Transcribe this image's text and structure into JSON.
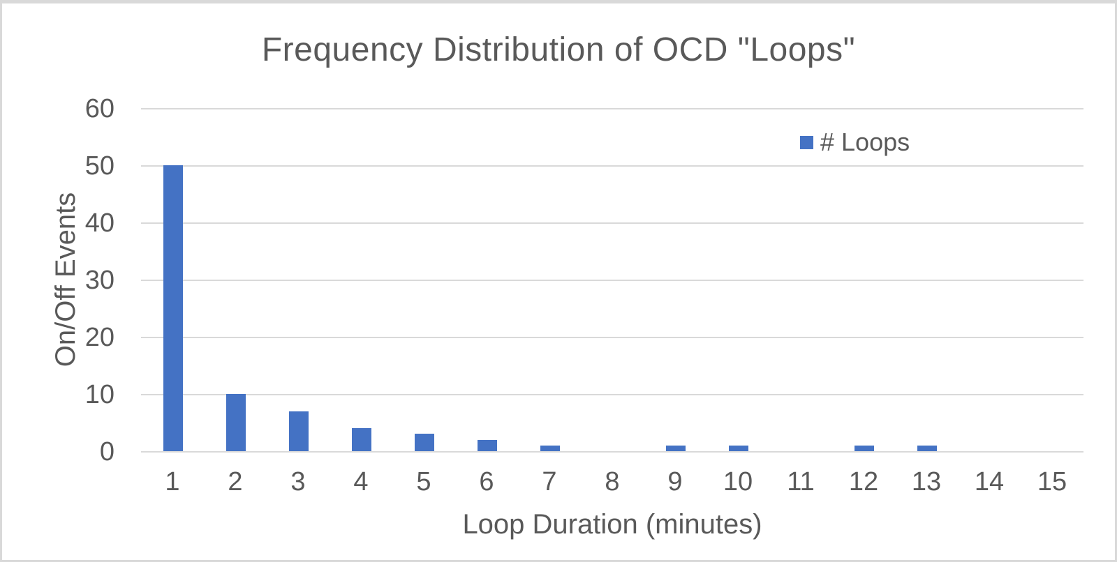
{
  "chart_data": {
    "type": "bar",
    "title": "Frequency Distribution of OCD \"Loops\"",
    "xlabel": "Loop Duration (minutes)",
    "ylabel": "On/Off Events",
    "categories": [
      "1",
      "2",
      "3",
      "4",
      "5",
      "6",
      "7",
      "8",
      "9",
      "10",
      "11",
      "12",
      "13",
      "14",
      "15"
    ],
    "series": [
      {
        "name": "# Loops",
        "values": [
          50,
          10,
          7,
          4,
          3,
          2,
          1,
          0,
          1,
          1,
          0,
          1,
          1,
          0,
          0
        ]
      }
    ],
    "ylim": [
      0,
      60
    ],
    "ytick_step": 10,
    "yticks": [
      "0",
      "10",
      "20",
      "30",
      "40",
      "50",
      "60"
    ],
    "grid": true,
    "legend_position": "top-right",
    "legend_marker": "square-icon",
    "colors": {
      "bar": "#4472C4",
      "text": "#595959",
      "gridline": "#D9D9D9",
      "frame_border": "#D9D9D9",
      "background": "#FFFFFF"
    }
  }
}
